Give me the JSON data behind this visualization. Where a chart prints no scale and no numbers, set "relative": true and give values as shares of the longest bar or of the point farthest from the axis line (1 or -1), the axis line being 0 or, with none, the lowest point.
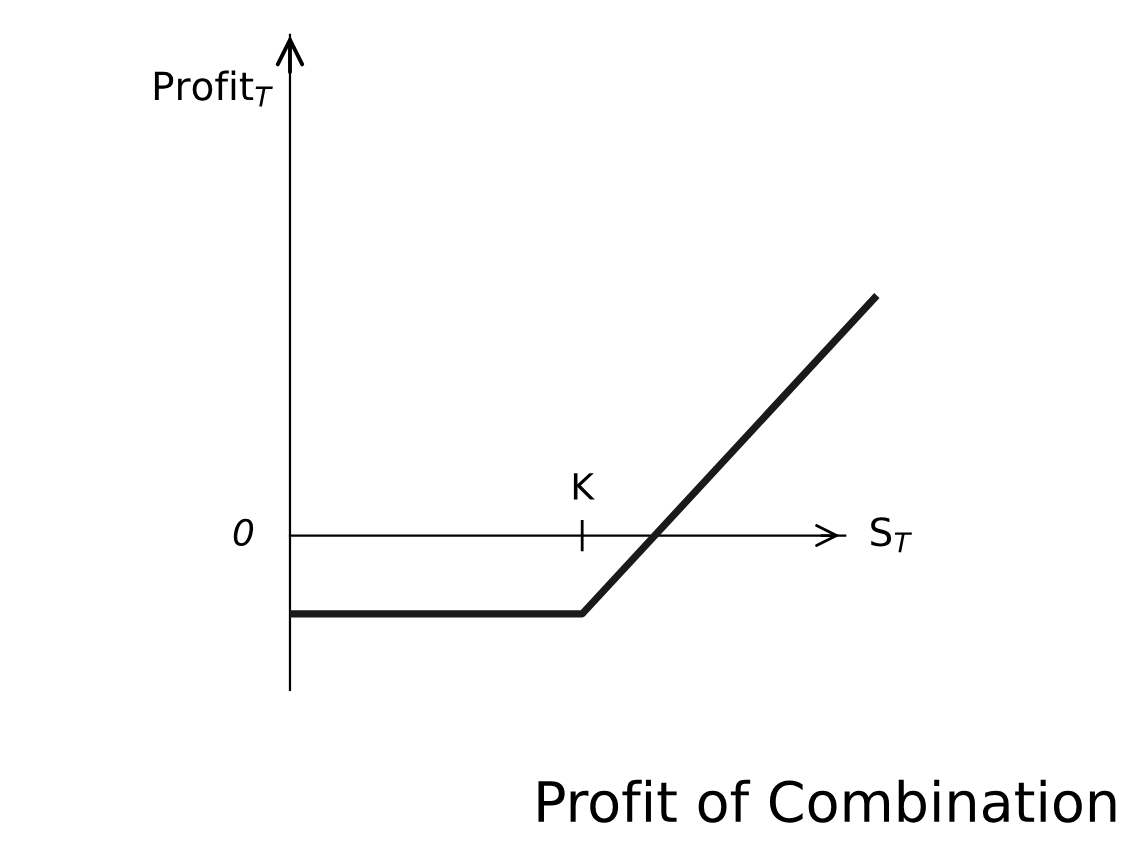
{
  "chart_data": {
    "type": "line",
    "title": "Profit of Combination",
    "xlabel": "S$_{T}$",
    "ylabel": "Profit$_{T}$",
    "categories": [
      null,
      null,
      null
    ],
    "relative": true,
    "series": [
      {
        "color": "#1a1a1a",
        "values": [
          -0.33,
          -0.33,
          1
        ]
      }
    ],
    "annotations": [
      "0",
      "K"
    ],
    "grid": false,
    "legend": false,
    "marker": "none",
    "line_style": "solid"
  }
}
